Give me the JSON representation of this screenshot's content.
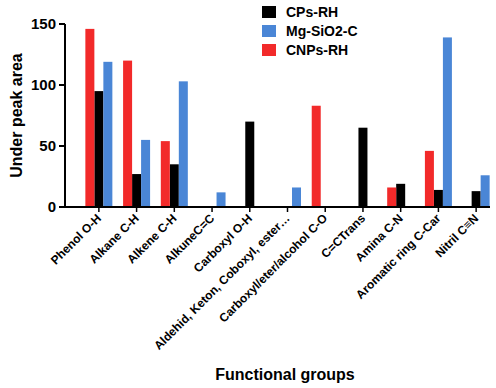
{
  "chart_data": {
    "type": "bar",
    "x_label": "Functional groups",
    "y_label": "Under peak area",
    "categories": [
      "Phenol O-H",
      "Alkane C-H",
      "Alkene C-H",
      "AlkuneC=C",
      "Carboxyl O-H",
      "Aldehid, Keton, Coboxyl, ester…",
      "Carboxyl/eter/alcohol C-O",
      "C=CTrans",
      "Amina C-N",
      "Aromatic ring C-Car",
      "Nitril C≡N"
    ],
    "series": [
      {
        "name": "CPs-RH",
        "color": "#000000",
        "values": [
          95,
          27,
          35,
          0,
          70,
          0,
          0,
          65,
          19,
          14,
          13
        ]
      },
      {
        "name": "Mg-SiO2-C",
        "color": "#4a86d6",
        "values": [
          119,
          55,
          103,
          12,
          0,
          16,
          0,
          0,
          0,
          139,
          26
        ]
      },
      {
        "name": "CNPs-RH",
        "color": "#f22a2a",
        "values": [
          146,
          120,
          54,
          0,
          0,
          0,
          83,
          0,
          16,
          46,
          0
        ]
      }
    ],
    "ylim": [
      0,
      150
    ],
    "yticks": [
      0,
      50,
      100,
      150
    ],
    "grid": false,
    "legend": "top"
  }
}
